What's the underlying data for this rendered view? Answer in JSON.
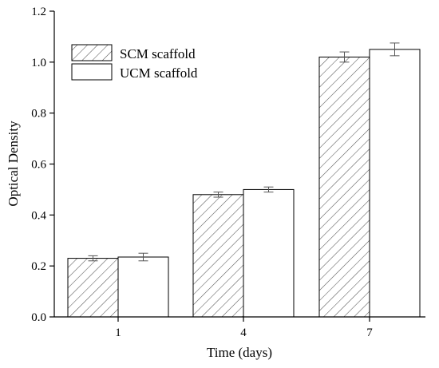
{
  "chart_data": {
    "type": "bar",
    "title": "",
    "xlabel": "Time (days)",
    "ylabel": "Optical Density",
    "categories": [
      "1",
      "4",
      "7"
    ],
    "ylim": [
      0.0,
      1.2
    ],
    "yticks": [
      "0.0",
      "0.2",
      "0.4",
      "0.6",
      "0.8",
      "1.0",
      "1.2"
    ],
    "grid": false,
    "legend_position": "top-left",
    "series": [
      {
        "name": "SCM scaffold",
        "fill": "hatched",
        "values": [
          0.23,
          0.48,
          1.02
        ],
        "errors": [
          0.01,
          0.01,
          0.02
        ]
      },
      {
        "name": "UCM scaffold",
        "fill": "white",
        "values": [
          0.235,
          0.5,
          1.05
        ],
        "errors": [
          0.015,
          0.01,
          0.025
        ]
      }
    ]
  },
  "colors": {
    "axis": "#000000",
    "bar_fill_plain": "#ffffff",
    "hatch": "#555555",
    "error_bar": "#555555"
  }
}
